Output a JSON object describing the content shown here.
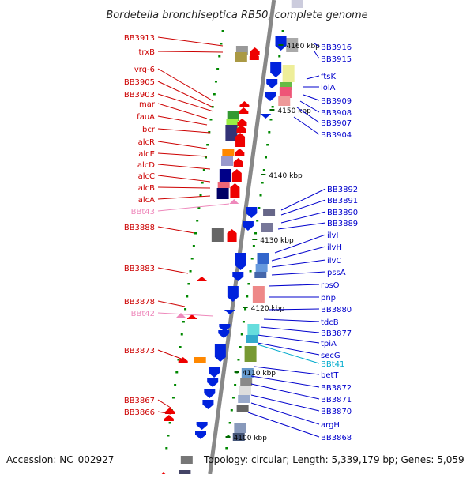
{
  "title": "Bordetella bronchiseptica RB50, complete genome",
  "footer": {
    "accession": "Accession: NC_002927",
    "summary": "Topology: circular; Length: 5,339,179 bp; Genes: 5,059"
  },
  "colors": {
    "left_label": "#cc0000",
    "right_label": "#0000cc",
    "rna_label": "#ee88bb",
    "cyan_label": "#00aacc",
    "kbp_label": "#000000",
    "backbone": "#888888",
    "tick": "#008800"
  },
  "tracks": {
    "kbp": [
      {
        "label": "4160 kbp"
      },
      {
        "label": "4150 kbp"
      },
      {
        "label": "4140 kbp"
      },
      {
        "label": "4130 kbp"
      },
      {
        "label": "4120 kbp"
      },
      {
        "label": "4110 kbp"
      },
      {
        "label": "4100 kbp"
      }
    ]
  },
  "left_labels": [
    "BB3913",
    "trxB",
    "vrg-6",
    "BB3905",
    "BB3903",
    "mar",
    "fauA",
    "bcr",
    "alcR",
    "alcE",
    "alcD",
    "alcC",
    "alcB",
    "alcA",
    "BBt43",
    "BB3888",
    "BB3883",
    "BB3878",
    "BBt42",
    "BB3873",
    "BB3867",
    "BB3866"
  ],
  "right_labels": [
    "BB3916",
    "BB3915",
    "ftsK",
    "lolA",
    "BB3909",
    "BB3908",
    "BB3907",
    "BB3904",
    "BB3892",
    "BB3891",
    "BB3890",
    "BB3889",
    "ilvI",
    "ilvH",
    "ilvC",
    "pssA",
    "rpsO",
    "pnp",
    "BB3880",
    "tdcB",
    "BB3877",
    "tpiA",
    "secG",
    "BBt41",
    "betT",
    "BB3872",
    "BB3871",
    "BB3870",
    "argH",
    "BB3868"
  ]
}
